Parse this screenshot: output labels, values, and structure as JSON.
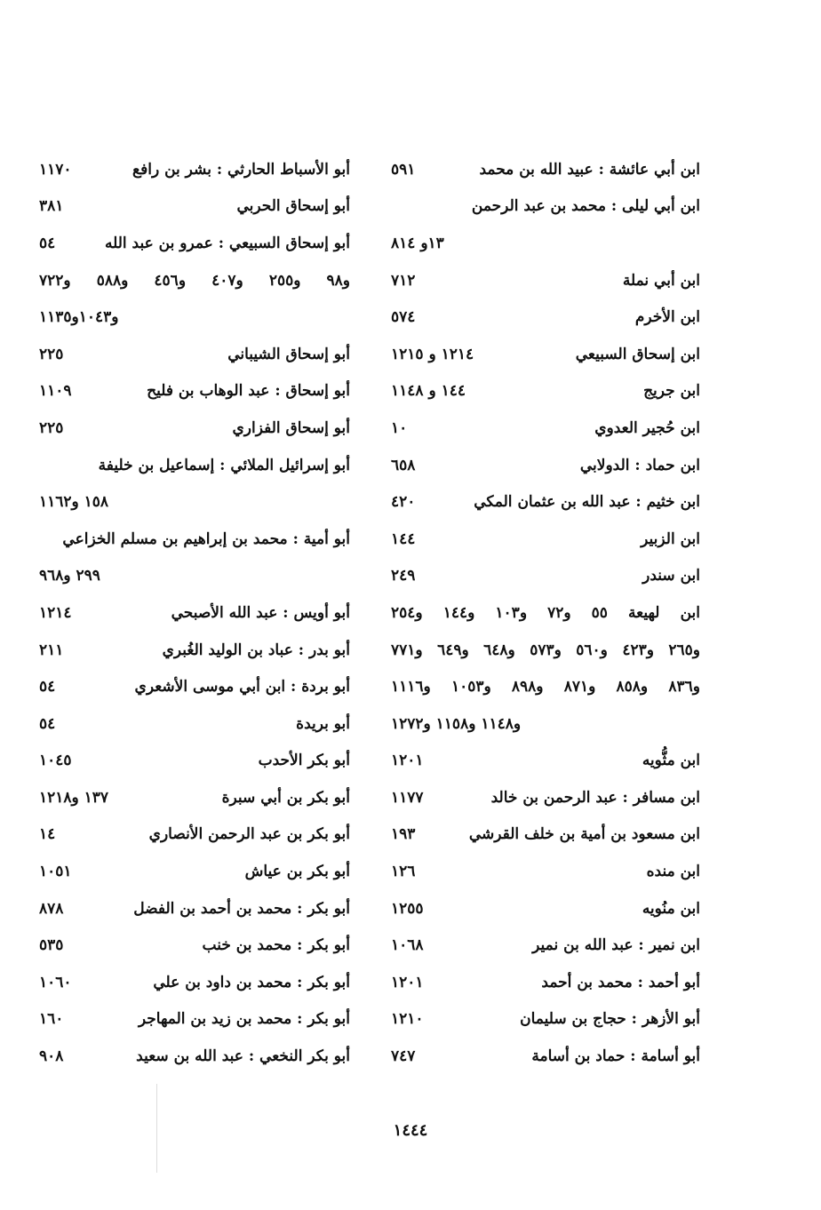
{
  "columns": {
    "right": [
      {
        "name": "ابن أبي عائشة : عبيد الله بن محمد",
        "num": "٥٩١"
      },
      {
        "text": "ابن أبي ليلى : محمد بن عبد الرحمن",
        "align": "right"
      },
      {
        "text": "١٣و ٨١٤",
        "align": "left"
      },
      {
        "name": "ابن أبي نملة",
        "num": "٧١٢"
      },
      {
        "name": "ابن الأخرم",
        "num": "٥٧٤"
      },
      {
        "name": "ابن إسحاق السبيعي",
        "num": "١٢١٤ و ١٢١٥"
      },
      {
        "name": "ابن جريج",
        "num": "١٤٤ و ١١٤٨"
      },
      {
        "name": "ابن حُجير العدوي",
        "num": "١٠"
      },
      {
        "name": "ابن حماد : الدولابي",
        "num": "٦٥٨"
      },
      {
        "name": "ابن خثيم : عبد الله بن عثمان المكي",
        "num": "٤٢٠"
      },
      {
        "name": "ابن الزبير",
        "num": "١٤٤"
      },
      {
        "name": "ابن سندر",
        "num": "٢٤٩"
      },
      {
        "text": "ابن لهيعة   ٥٥ و٧٢   و١٠٣ و١٤٤ و٢٥٤",
        "align": "justify"
      },
      {
        "text": "و٢٦٥ و٤٢٣ و٥٦٠ و٥٧٣ و٦٤٨ و٦٤٩ و٧٧١",
        "align": "justify"
      },
      {
        "text": "و٨٣٦ و٨٥٨ و٨٧١ و٨٩٨ و١٠٥٣ و١١١٦",
        "align": "justify"
      },
      {
        "text": "و١١٤٨ و١١٥٨ و١٢٧٢",
        "align": "left"
      },
      {
        "name": "ابن مثُّويه",
        "num": "١٢٠١"
      },
      {
        "name": "ابن مسافر : عبد الرحمن بن خالد",
        "num": "١١٧٧"
      },
      {
        "name": "ابن مسعود بن أمية بن خلف القرشي",
        "num": "١٩٣"
      },
      {
        "name": "ابن منده",
        "num": "١٢٦"
      },
      {
        "name": "ابن منُويه",
        "num": "١٢٥٥"
      },
      {
        "name": "ابن نمير : عبد الله بن نمير",
        "num": "١٠٦٨"
      },
      {
        "name": "أبو أحمد : محمد بن أحمد",
        "num": "١٢٠١"
      },
      {
        "name": "أبو الأزهر : حجاج بن سليمان",
        "num": "١٢١٠"
      },
      {
        "name": "أبو أسامة : حماد بن أسامة",
        "num": "٧٤٧"
      }
    ],
    "left": [
      {
        "name": "أبو الأسباط الحارثي : بشر بن رافع",
        "num": "١١٧٠"
      },
      {
        "name": "أبو إسحاق الحربي",
        "num": "٣٨١"
      },
      {
        "name": "أبو إسحاق السبيعي : عمرو بن عبد الله",
        "num": "٥٤"
      },
      {
        "text": "و٩٨ و٢٥٥ و٤٠٧ و٤٥٦ و٥٨٨ و٧٢٢",
        "align": "justify"
      },
      {
        "text": "و١٠٤٣و١١٣٥",
        "align": "left"
      },
      {
        "name": "أبو إسحاق الشيباني",
        "num": "٢٢٥"
      },
      {
        "name": "أبو إسحاق : عبد الوهاب بن فليح",
        "num": "١١٠٩"
      },
      {
        "name": "أبو إسحاق الفزاري",
        "num": "٢٢٥"
      },
      {
        "text": "أبو إسرائيل الملائي : إسماعيل بن خليفة",
        "align": "right"
      },
      {
        "text": "١٥٨ و١١٦٢",
        "align": "left"
      },
      {
        "text": "أبو أمية : محمد بن إبراهيم بن مسلم الخزاعي",
        "align": "right"
      },
      {
        "text": "٢٩٩ و٩٦٨",
        "align": "left"
      },
      {
        "name": "أبو أويس : عبد الله الأصبحي",
        "num": "١٢١٤"
      },
      {
        "name": "أبو بدر : عباد بن الوليد الغُبري",
        "num": "٢١١"
      },
      {
        "name": "أبو بردة : ابن أبي موسى الأشعري",
        "num": "٥٤"
      },
      {
        "name": "أبو بريدة",
        "num": "٥٤"
      },
      {
        "name": "أبو بكر الأحدب",
        "num": "١٠٤٥"
      },
      {
        "name": "أبو بكر بن أبي سبرة",
        "num": "١٣٧ و١٢١٨"
      },
      {
        "name": "أبو بكر بن عبد الرحمن الأنصاري",
        "num": "١٤"
      },
      {
        "name": "أبو بكر بن عياش",
        "num": "١٠٥١"
      },
      {
        "name": "أبو بكر : محمد بن أحمد بن الفضل",
        "num": "٨٧٨"
      },
      {
        "name": "أبو بكر : محمد بن خنب",
        "num": "٥٣٥"
      },
      {
        "name": "أبو بكر : محمد بن داود بن علي",
        "num": "١٠٦٠"
      },
      {
        "name": "أبو بكر : محمد بن زيد بن المهاجر",
        "num": "١٦٠"
      },
      {
        "name": "أبو بكر النخعي : عبد الله بن سعيد",
        "num": "٩٠٨"
      }
    ]
  },
  "page_number": "١٤٤٤"
}
